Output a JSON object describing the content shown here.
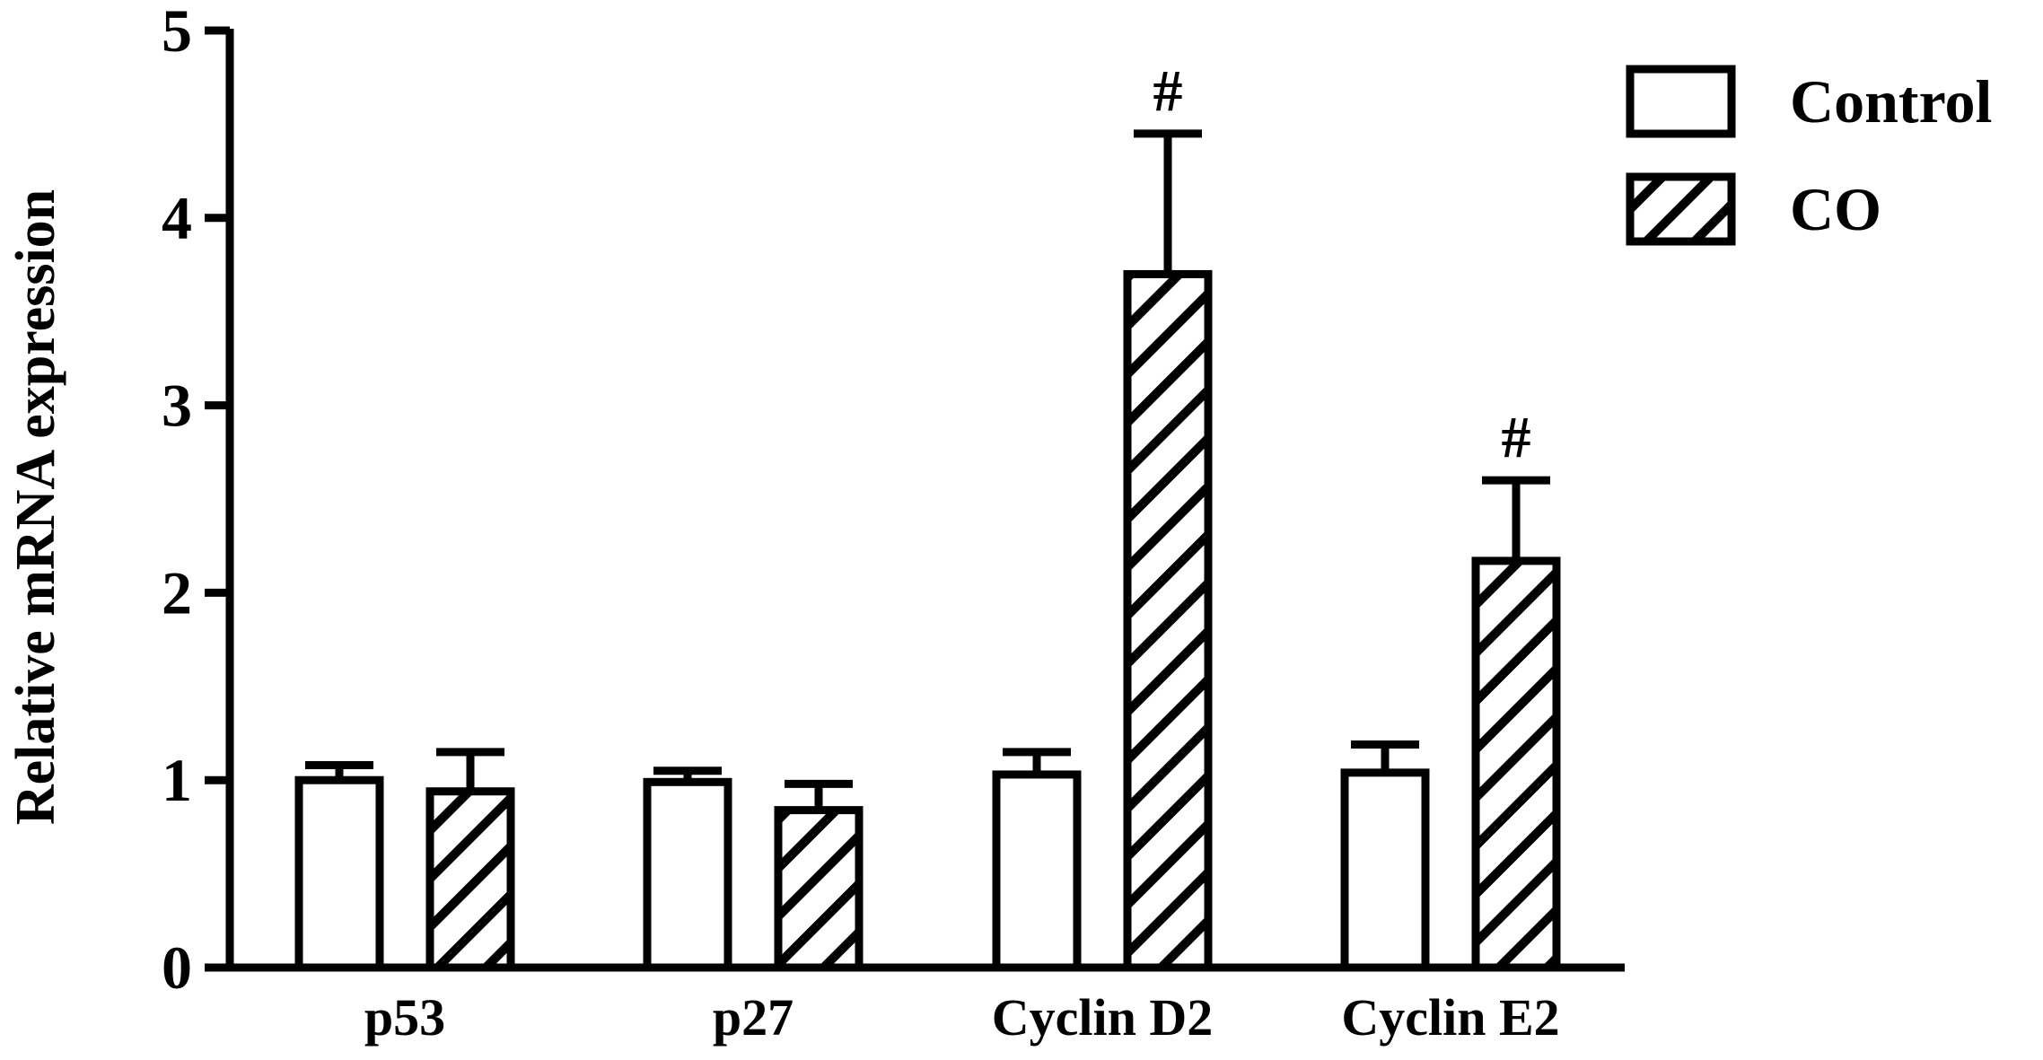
{
  "chart_data": {
    "type": "bar",
    "title": "",
    "xlabel": "",
    "ylabel": "Relative mRNA expression",
    "ylim": [
      0,
      5
    ],
    "yticks": [
      0,
      1,
      2,
      3,
      4,
      5
    ],
    "categories": [
      "p53",
      "p27",
      "Cyclin D2",
      "Cyclin E2"
    ],
    "series": [
      {
        "name": "Control",
        "pattern": "solid-white",
        "values": [
          1.0,
          0.99,
          1.03,
          1.04
        ],
        "errors": [
          0.08,
          0.06,
          0.12,
          0.15
        ]
      },
      {
        "name": "CO",
        "pattern": "diagonal-hatch",
        "values": [
          0.94,
          0.84,
          3.7,
          2.17
        ],
        "errors": [
          0.21,
          0.14,
          0.75,
          0.43
        ]
      }
    ],
    "annotations": [
      {
        "category": "Cyclin D2",
        "series": "CO",
        "text": "#"
      },
      {
        "category": "Cyclin E2",
        "series": "CO",
        "text": "#"
      }
    ],
    "grid": false,
    "legend_position": "top-right",
    "colors": {
      "stroke": "#000000",
      "fill": "#ffffff"
    }
  }
}
